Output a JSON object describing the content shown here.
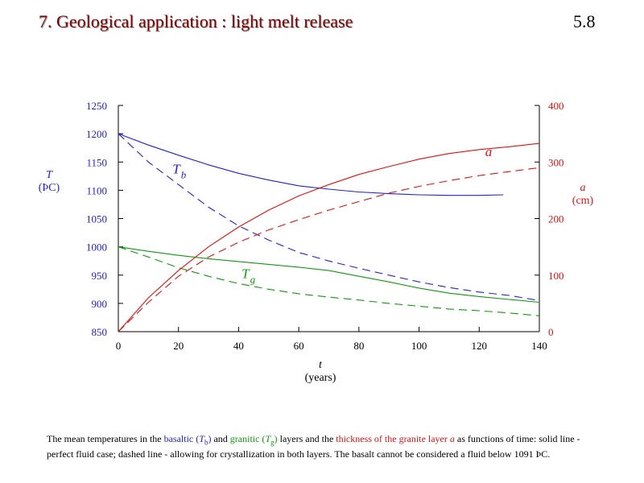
{
  "slide": {
    "title": "7. Geological application : light melt release",
    "number": "5.8"
  },
  "colors": {
    "basalt": "#2222cc",
    "granite": "#109910",
    "thickness": "#dd1111",
    "axis": "#000000"
  },
  "chart_data": {
    "type": "line",
    "grid": false,
    "legend": "none",
    "x_axis": {
      "label": "t",
      "unit": "(years)",
      "range": [
        0,
        140
      ],
      "ticks": [
        "0",
        "20",
        "40",
        "60",
        "80",
        "100",
        "120",
        "140"
      ]
    },
    "y_left": {
      "label": "T",
      "unit": "(ÞC)",
      "range": [
        850,
        1250
      ],
      "ticks": [
        "850",
        "900",
        "950",
        "1000",
        "1050",
        "1100",
        "1150",
        "1200",
        "1250"
      ]
    },
    "y_right": {
      "label": "a",
      "unit": "(cm)",
      "range": [
        0,
        400
      ],
      "ticks": [
        "0",
        "100",
        "200",
        "300",
        "400"
      ]
    },
    "series": [
      {
        "name": "Tb",
        "style": "solid",
        "color": "basalt",
        "axis": "left",
        "x": [
          0,
          10,
          20,
          30,
          40,
          50,
          60,
          70,
          80,
          90,
          100,
          110,
          120,
          128
        ],
        "y": [
          1200,
          1180,
          1162,
          1145,
          1130,
          1118,
          1108,
          1102,
          1097,
          1094,
          1092,
          1091,
          1091,
          1092
        ]
      },
      {
        "name": "Tb",
        "style": "dashed",
        "color": "basalt",
        "axis": "left",
        "x": [
          0,
          10,
          20,
          30,
          40,
          50,
          60,
          70,
          80,
          90,
          100,
          110,
          120,
          130,
          140
        ],
        "y": [
          1200,
          1150,
          1110,
          1070,
          1037,
          1012,
          990,
          975,
          962,
          950,
          938,
          928,
          920,
          914,
          905
        ]
      },
      {
        "name": "Tg",
        "style": "solid",
        "color": "granite",
        "axis": "left",
        "x": [
          0,
          10,
          20,
          30,
          40,
          50,
          60,
          70,
          80,
          90,
          100,
          110,
          120,
          130,
          140
        ],
        "y": [
          1000,
          992,
          985,
          979,
          974,
          969,
          964,
          958,
          948,
          938,
          927,
          918,
          912,
          907,
          902
        ]
      },
      {
        "name": "Tg",
        "style": "dashed",
        "color": "granite",
        "axis": "left",
        "x": [
          0,
          10,
          20,
          30,
          40,
          50,
          60,
          70,
          80,
          90,
          100,
          110,
          120,
          130,
          140
        ],
        "y": [
          1000,
          982,
          963,
          948,
          935,
          925,
          917,
          911,
          906,
          900,
          895,
          890,
          887,
          883,
          878
        ]
      },
      {
        "name": "a",
        "style": "solid",
        "color": "thickness",
        "axis": "right",
        "x": [
          0,
          10,
          20,
          30,
          40,
          50,
          60,
          70,
          80,
          90,
          100,
          110,
          120,
          130,
          140
        ],
        "y": [
          0,
          60,
          108,
          150,
          185,
          215,
          240,
          260,
          278,
          292,
          305,
          315,
          322,
          327,
          333
        ]
      },
      {
        "name": "a",
        "style": "dashed",
        "color": "thickness",
        "axis": "right",
        "x": [
          0,
          10,
          20,
          30,
          40,
          50,
          60,
          70,
          80,
          90,
          100,
          110,
          120,
          130,
          140
        ],
        "y": [
          0,
          52,
          98,
          132,
          158,
          180,
          198,
          215,
          230,
          245,
          257,
          267,
          276,
          283,
          290
        ]
      }
    ],
    "annotations": [
      {
        "text": "T",
        "sub": "b",
        "color": "basalt",
        "x": 18,
        "y": 1130,
        "axis": "left"
      },
      {
        "text": "T",
        "sub": "g",
        "color": "granite",
        "x": 41,
        "y": 945,
        "axis": "left"
      },
      {
        "text": "a",
        "sub": "",
        "color": "thickness",
        "x": 122,
        "y": 310,
        "axis": "right"
      }
    ]
  },
  "caption": {
    "p1": "The mean temperatures in the ",
    "basaltic": "basaltic (",
    "tb_t": "T",
    "tb_sub": "b",
    "basaltic_close": ")",
    "p2": " and ",
    "granitic": "granitic (",
    "tg_t": "T",
    "tg_sub": "g",
    "granitic_close": ")",
    "p3": " layers and the ",
    "thickness": "thickness of the granite layer ",
    "thickness_var": "a",
    "p4": " as functions of time:  solid line -  perfect fluid case; dashed line - allowing for crystallization in both layers. The basalt cannot be considered a fluid below 1091 ÞC."
  }
}
